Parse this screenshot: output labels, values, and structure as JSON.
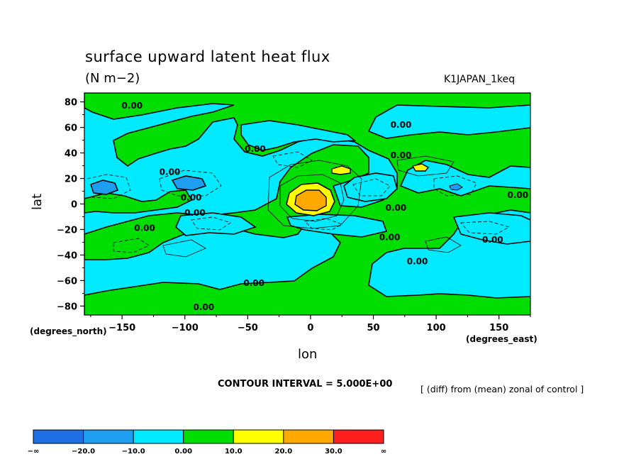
{
  "chart_data": {
    "type": "contour",
    "title": "surface upward latent heat flux",
    "units": "(N m−2)",
    "run_id": "K1JAPAN_1keq",
    "xlabel": "lon",
    "ylabel": "lat",
    "x_unit": "(degrees_east)",
    "y_unit": "(degrees_north)",
    "xlim": [
      -180,
      175
    ],
    "ylim": [
      -87,
      87
    ],
    "x_ticks": [
      -150,
      -100,
      -50,
      0,
      50,
      100,
      150
    ],
    "x_tick_labels": [
      "−150",
      "−100",
      "−50",
      "0",
      "50",
      "100",
      "150"
    ],
    "y_ticks": [
      80,
      60,
      40,
      20,
      0,
      -20,
      -40,
      -60,
      -80
    ],
    "y_tick_labels": [
      "80",
      "60",
      "40",
      "20",
      "0",
      "−20",
      "−40",
      "−60",
      "−80"
    ],
    "contour_interval_text": "CONTOUR INTERVAL = 5.000E+00",
    "subtitle_note": "[ (diff) from (mean) zonal of control ]",
    "contour_labels": [
      {
        "text": "0.00",
        "lon": -142,
        "lat": 77
      },
      {
        "text": "0.00",
        "lon": -112,
        "lat": 25
      },
      {
        "text": "0.00",
        "lon": -95,
        "lat": 5
      },
      {
        "text": "0.00",
        "lon": -92,
        "lat": -7
      },
      {
        "text": "0.00",
        "lon": -132,
        "lat": -19
      },
      {
        "text": "0.00",
        "lon": -44,
        "lat": 43
      },
      {
        "text": "0.00",
        "lon": -45,
        "lat": -62
      },
      {
        "text": "0.00",
        "lon": -85,
        "lat": -81
      },
      {
        "text": "0.00",
        "lon": 72,
        "lat": 62
      },
      {
        "text": "0.00",
        "lon": 72,
        "lat": 38
      },
      {
        "text": "0.00",
        "lon": 68,
        "lat": -3
      },
      {
        "text": "0.00",
        "lon": 63,
        "lat": -26
      },
      {
        "text": "0.00",
        "lon": 85,
        "lat": -45
      },
      {
        "text": "0.00",
        "lon": 145,
        "lat": -28
      },
      {
        "text": "0.00",
        "lon": 165,
        "lat": 7
      }
    ],
    "colorbar": {
      "levels": [
        "−∞",
        "−20.0",
        "−10.0",
        "0.00",
        "10.0",
        "20.0",
        "30.0",
        "∞"
      ],
      "colors": [
        "#1e6ee6",
        "#1e9ef0",
        "#00eaff",
        "#00dd00",
        "#ffff00",
        "#ffa800",
        "#ff1e1e"
      ]
    },
    "fill_colors": {
      "below_minus20": "#1e6ee6",
      "minus20_to_minus10": "#1e9ef0",
      "minus10_to_0": "#00eaff",
      "zero_to_10": "#00dd00",
      "ten_to_20": "#ffff00",
      "twenty_to_30": "#ffa800",
      "above_30": "#ff1e1e"
    }
  }
}
